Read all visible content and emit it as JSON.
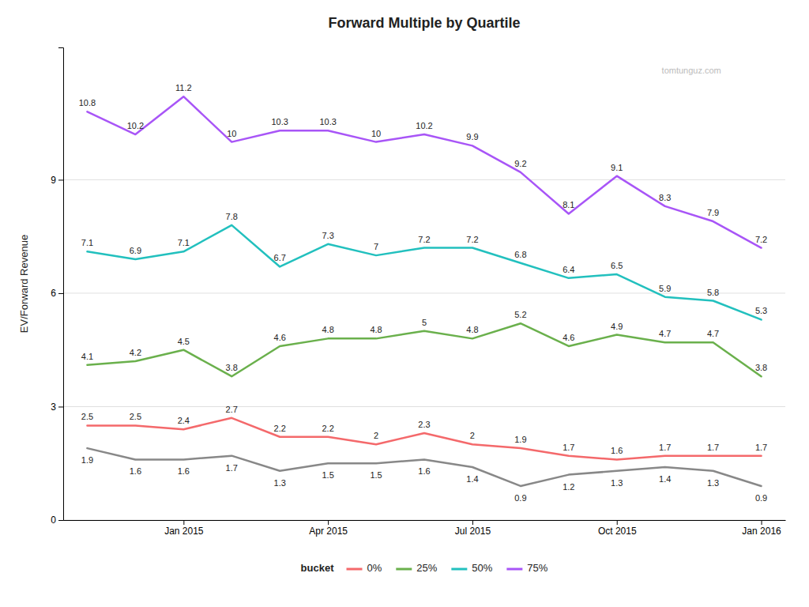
{
  "chart_data": {
    "type": "line",
    "title": "Forward Multiple by Quartile",
    "y_label": "EV/Forward Revenue",
    "annotations": [
      "tomtunguz.com"
    ],
    "legend_title": "bucket",
    "legend": "bottom",
    "grid": true,
    "data_labels": true,
    "categories": [
      null,
      null,
      "Jan 2015",
      null,
      null,
      "Apr 2015",
      null,
      null,
      "Jul 2015",
      null,
      null,
      "Oct 2015",
      null,
      null,
      "Jan 2016"
    ],
    "series": [
      {
        "color": "#888888",
        "values": [
          1.9,
          1.6,
          1.6,
          1.7,
          1.3,
          1.5,
          1.5,
          1.6,
          1.4,
          0.9,
          1.2,
          1.3,
          1.4,
          1.3,
          0.9
        ]
      },
      {
        "name": "0%",
        "color": "#f4696b",
        "values": [
          2.5,
          2.5,
          2.4,
          2.7,
          2.2,
          2.2,
          2.0,
          2.3,
          2.0,
          1.9,
          1.7,
          1.6,
          1.7,
          1.7,
          1.7
        ]
      },
      {
        "name": "25%",
        "color": "#6ab04c",
        "values": [
          4.1,
          4.2,
          4.5,
          3.8,
          4.6,
          4.8,
          4.8,
          5.0,
          4.8,
          5.2,
          4.6,
          4.9,
          4.7,
          4.7,
          3.8
        ]
      },
      {
        "name": "50%",
        "color": "#22c0be",
        "values": [
          7.1,
          6.9,
          7.1,
          7.8,
          6.7,
          7.3,
          7.0,
          7.2,
          7.2,
          6.8,
          6.4,
          6.5,
          5.9,
          5.8,
          5.3
        ]
      },
      {
        "name": "75%",
        "color": "#a855f7",
        "values": [
          10.8,
          10.2,
          11.2,
          10.0,
          10.3,
          10.3,
          10.0,
          10.2,
          9.9,
          9.2,
          8.1,
          9.1,
          8.3,
          7.9,
          7.2
        ]
      }
    ],
    "ylim": [
      0,
      12.5
    ],
    "yticks": [
      0,
      3,
      6,
      9
    ]
  }
}
